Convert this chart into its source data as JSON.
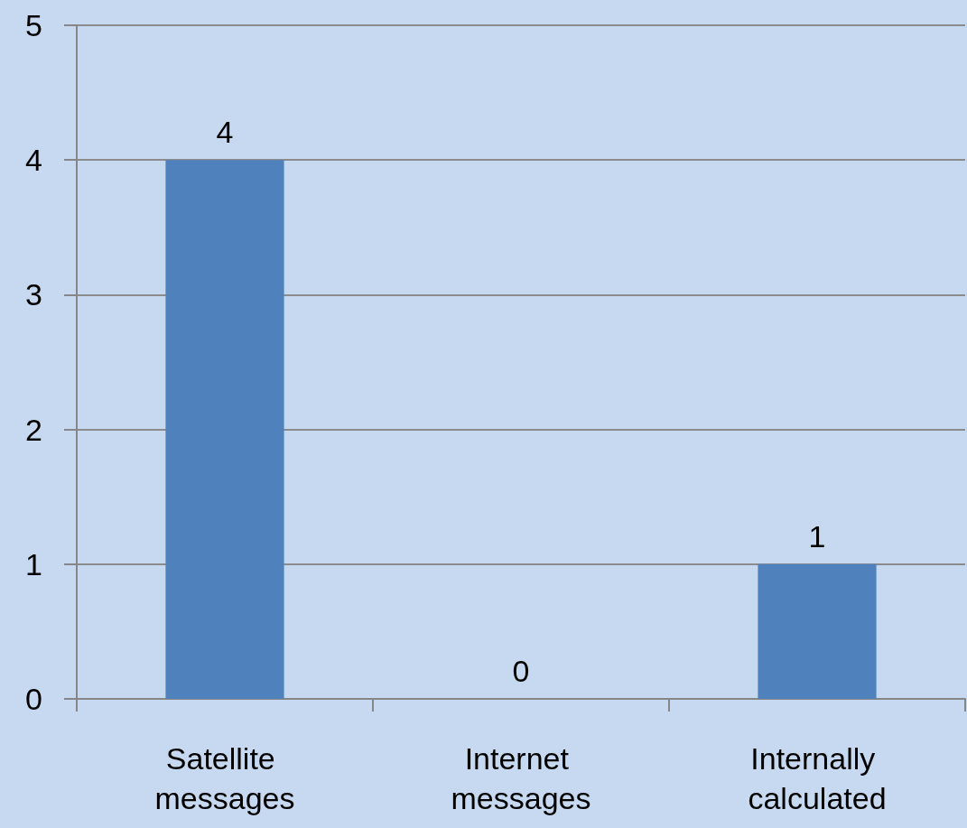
{
  "chart_data": {
    "type": "bar",
    "categories": [
      "Satellite messages",
      "Internet messages",
      "Internally calculated"
    ],
    "values": [
      4,
      0,
      1
    ],
    "color": "#4f81bd",
    "ylim": [
      0,
      5
    ],
    "yticks": [
      0,
      1,
      2,
      3,
      4,
      5
    ],
    "grid": "y",
    "data_labels": true
  }
}
